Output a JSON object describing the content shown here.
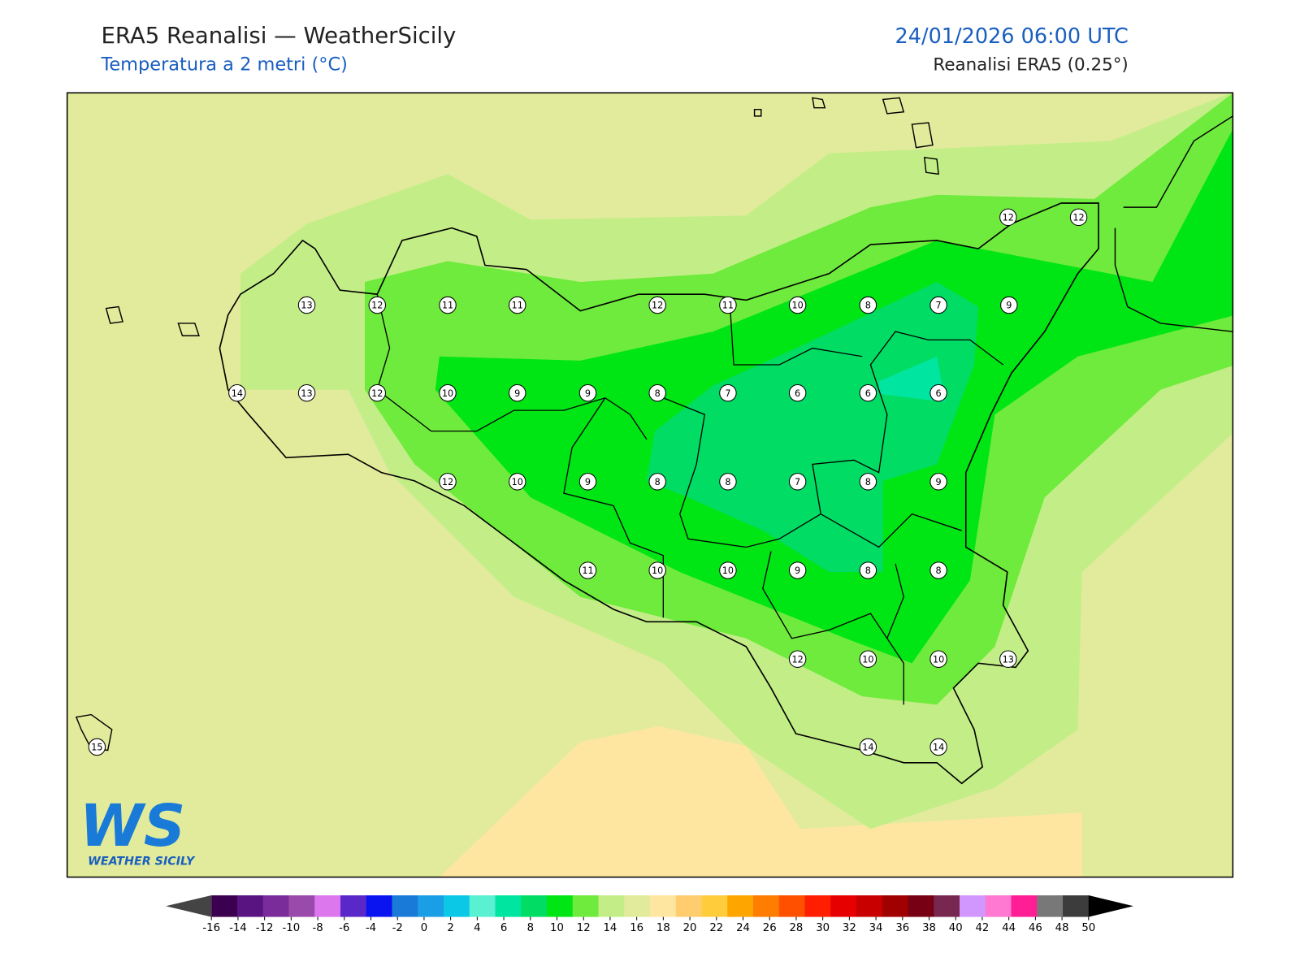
{
  "header": {
    "title": "ERA5 Reanalisi — WeatherSicily",
    "subtitle": "Temperatura a 2 metri (°C)",
    "datetime": "24/01/2026 06:00 UTC",
    "source": "Reanalisi ERA5 (0.25°)"
  },
  "stations": [
    13,
    12,
    11,
    11,
    12,
    11,
    10,
    8,
    7,
    9,
    12,
    12,
    14,
    13,
    12,
    10,
    9,
    9,
    8,
    7,
    6,
    6,
    6,
    12,
    10,
    9,
    8,
    8,
    7,
    8,
    9,
    11,
    10,
    10,
    9,
    8,
    8,
    12,
    10,
    10,
    13,
    15,
    14,
    14
  ],
  "colorbar": {
    "ticks": [
      -16,
      -14,
      -12,
      -10,
      -8,
      -6,
      -4,
      -2,
      0,
      2,
      4,
      6,
      8,
      10,
      12,
      14,
      16,
      18,
      20,
      22,
      24,
      26,
      28,
      30,
      32,
      34,
      36,
      38,
      40,
      42,
      44,
      46,
      48,
      50
    ],
    "colors": [
      "#3c0050",
      "#5a1482",
      "#7a2d9a",
      "#9a4aaa",
      "#dd77ee",
      "#5a28c8",
      "#0a14f0",
      "#1a7ad8",
      "#1a9ee6",
      "#0ac8e6",
      "#5af0d2",
      "#00e6a0",
      "#00dc64",
      "#00e614",
      "#6eeb3c",
      "#c3ee87",
      "#e1eb9b",
      "#ffe6a0",
      "#ffcd6e",
      "#ffcd3c",
      "#ffa500",
      "#ff7d00",
      "#ff5000",
      "#ff1e00",
      "#e60000",
      "#c80000",
      "#a00000",
      "#780014",
      "#782850",
      "#d296ff",
      "#ff78d2",
      "#ff1e96",
      "#787878",
      "#3c3c3c"
    ],
    "under_color": "#444444",
    "over_color": "#000000"
  },
  "logo": {
    "mark": "WS",
    "text": "WEATHER SICILY"
  }
}
